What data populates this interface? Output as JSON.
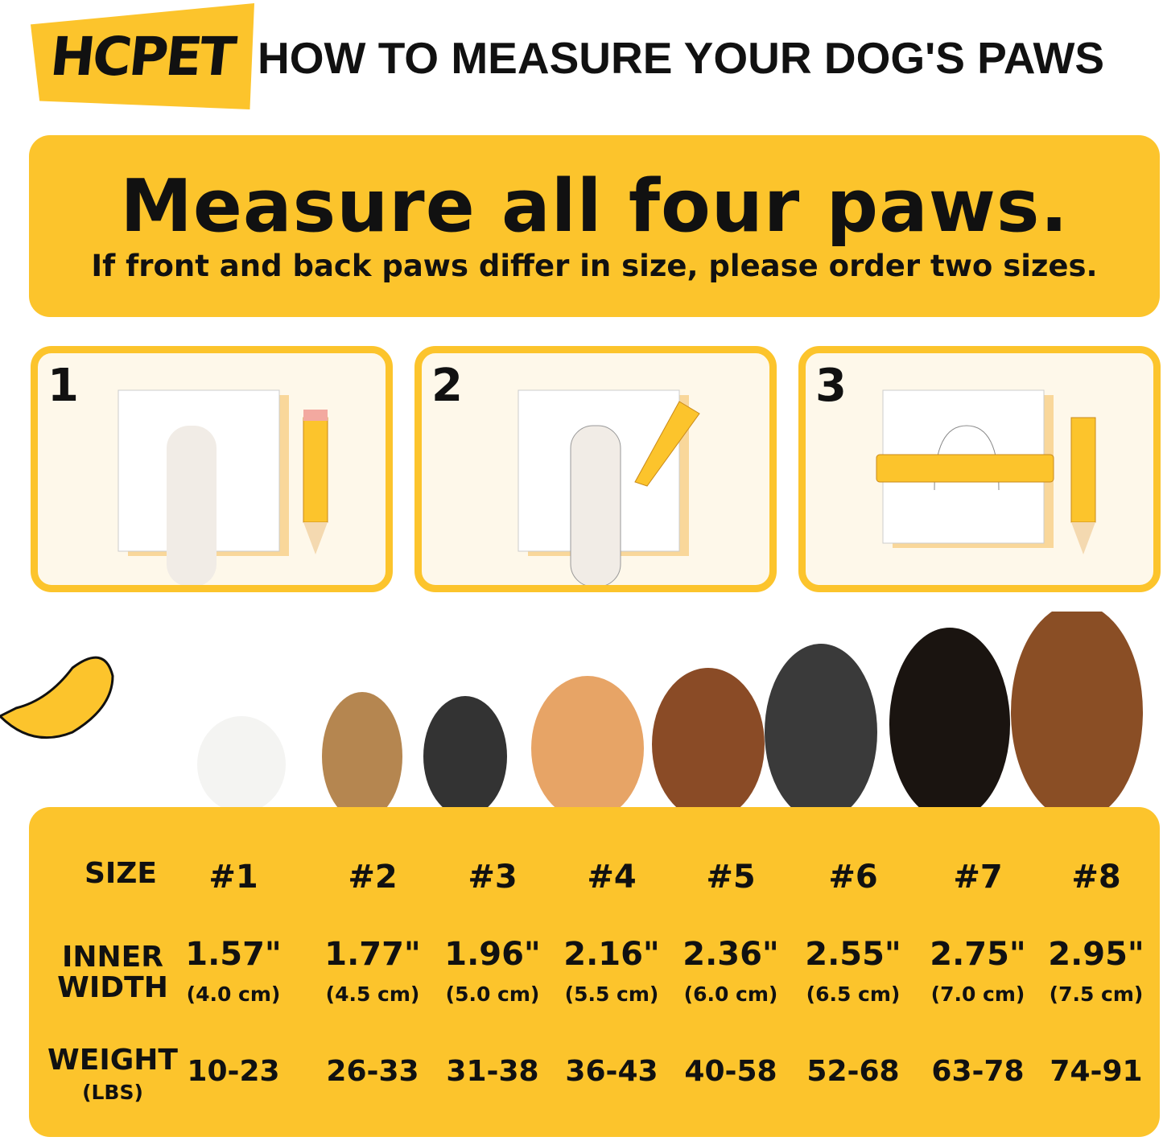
{
  "brand": "HCPET",
  "headline": "HOW TO MEASURE YOUR DOG'S PAWS",
  "banner": {
    "title": "Measure all four paws.",
    "subtitle": "If front and back paws differ in size, please order two sizes."
  },
  "steps": [
    {
      "number": "1"
    },
    {
      "number": "2"
    },
    {
      "number": "3"
    }
  ],
  "colors": {
    "accent": "#fcc42c",
    "panel": "#fef8ea",
    "text": "#111111"
  },
  "size_table": {
    "row_labels": {
      "size": "SIZE",
      "inner_width": [
        "INNER",
        "WIDTH"
      ],
      "weight": "WEIGHT",
      "weight_unit": "(LBS)"
    },
    "columns": [
      {
        "size": "#1",
        "inch": "1.57\"",
        "cm": "(4.0 cm)",
        "weight": "10-23"
      },
      {
        "size": "#2",
        "inch": "1.77\"",
        "cm": "(4.5 cm)",
        "weight": "26-33"
      },
      {
        "size": "#3",
        "inch": "1.96\"",
        "cm": "(5.0 cm)",
        "weight": "31-38"
      },
      {
        "size": "#4",
        "inch": "2.16\"",
        "cm": "(5.5 cm)",
        "weight": "36-43"
      },
      {
        "size": "#5",
        "inch": "2.36\"",
        "cm": "(6.0 cm)",
        "weight": "40-58"
      },
      {
        "size": "#6",
        "inch": "2.55\"",
        "cm": "(6.5 cm)",
        "weight": "52-68"
      },
      {
        "size": "#7",
        "inch": "2.75\"",
        "cm": "(7.0 cm)",
        "weight": "63-78"
      },
      {
        "size": "#8",
        "inch": "2.95\"",
        "cm": "(7.5 cm)",
        "weight": "74-91"
      }
    ]
  }
}
